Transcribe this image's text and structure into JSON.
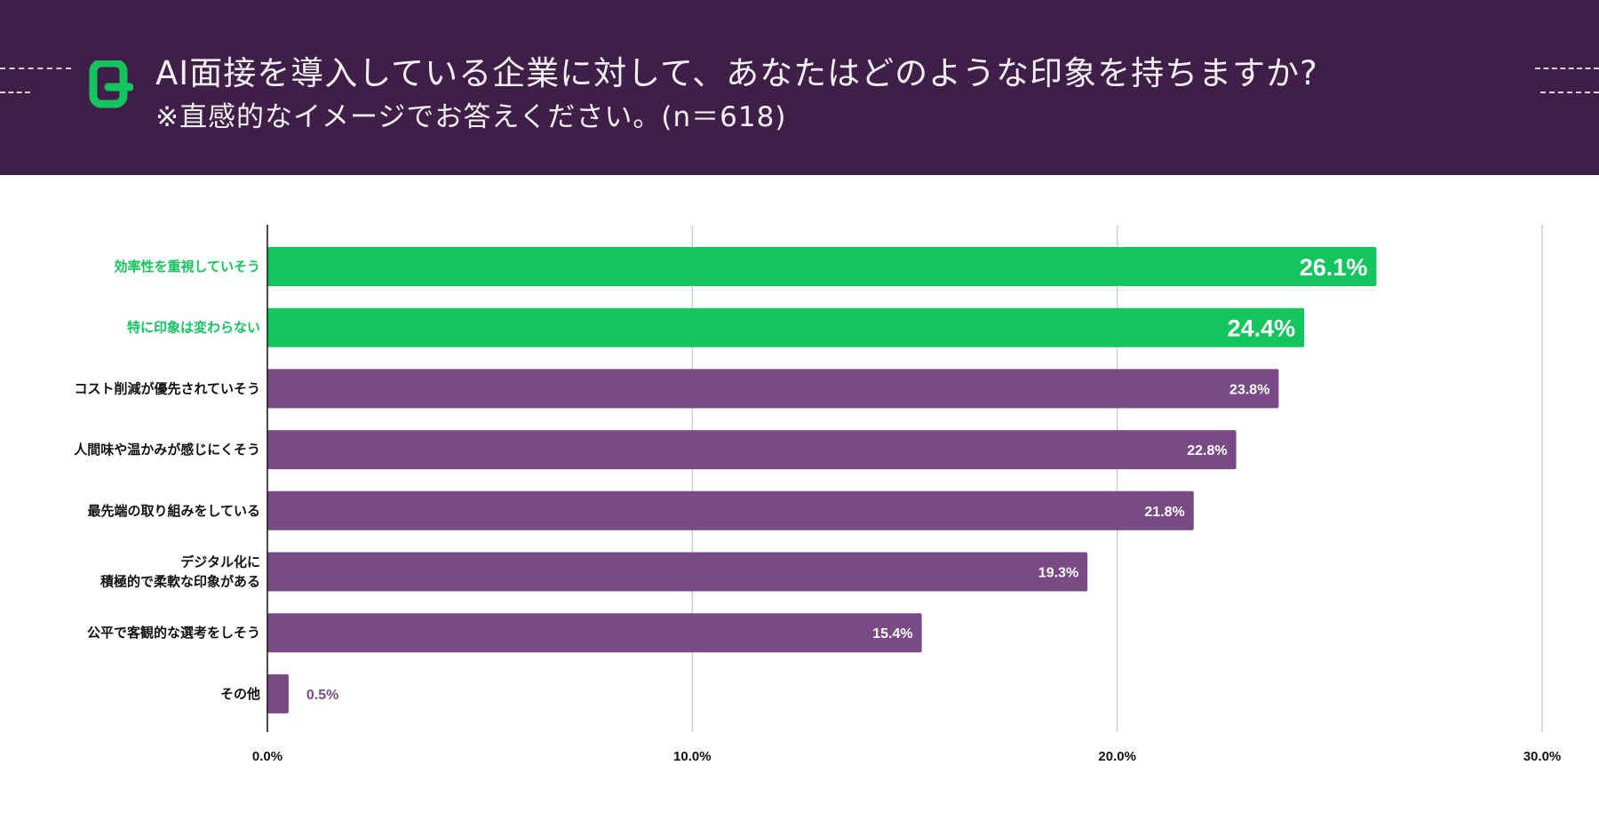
{
  "header": {
    "title": "AI面接を導入している企業に対して、あなたはどのような印象を持ちますか?",
    "subtitle": "※直感的なイメージでお答えください。(n＝618)",
    "logo_icon": "q-logo-icon"
  },
  "colors": {
    "header_bg": "#3f1f47",
    "highlight": "#14c45c",
    "bar": "#7a4a87",
    "label_default": "#111111"
  },
  "chart_data": {
    "type": "bar",
    "orientation": "horizontal",
    "categories": [
      "効率性を重視していそう",
      "特に印象は変わらない",
      "コスト削減が優先されていそう",
      "人間味や温かみが感じにくそう",
      "最先端の取り組みをしている",
      "デジタル化に\n積極的で柔軟な印象がある",
      "公平で客観的な選考をしそう",
      "その他"
    ],
    "values": [
      26.1,
      24.4,
      23.8,
      22.8,
      21.8,
      19.3,
      15.4,
      0.5
    ],
    "value_labels": [
      "26.1%",
      "24.4%",
      "23.8%",
      "22.8%",
      "21.8%",
      "19.3%",
      "15.4%",
      "0.5%"
    ],
    "highlighted": [
      true,
      true,
      false,
      false,
      false,
      false,
      false,
      false
    ],
    "xlim": [
      0,
      30
    ],
    "xticks": [
      0,
      10,
      20,
      30
    ],
    "xtick_labels": [
      "0.0%",
      "10.0%",
      "20.0%",
      "30.0%"
    ],
    "grid": true
  }
}
